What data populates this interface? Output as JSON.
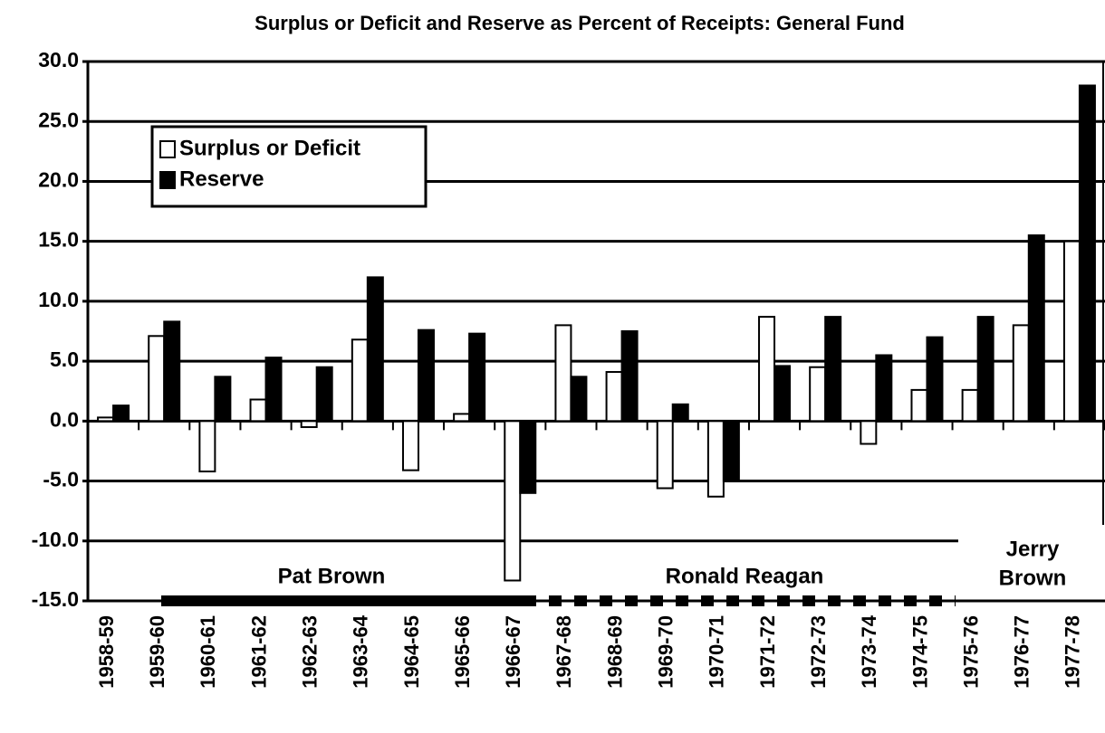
{
  "chart_data": {
    "type": "bar",
    "title": "Surplus or Deficit and Reserve as Percent of Receipts: General Fund",
    "categories": [
      "1958-59",
      "1959-60",
      "1960-61",
      "1961-62",
      "1962-63",
      "1963-64",
      "1964-65",
      "1965-66",
      "1966-67",
      "1967-68",
      "1968-69",
      "1969-70",
      "1970-71",
      "1971-72",
      "1972-73",
      "1973-74",
      "1974-75",
      "1975-76",
      "1976-77",
      "1977-78"
    ],
    "series": [
      {
        "name": "Surplus or Deficit",
        "color": "#ffffff",
        "values": [
          0.3,
          7.1,
          -4.2,
          1.8,
          -0.5,
          6.8,
          -4.1,
          0.6,
          -13.3,
          8.0,
          4.1,
          -5.6,
          -6.3,
          8.7,
          4.5,
          -1.9,
          2.6,
          2.6,
          8.0,
          15.0
        ]
      },
      {
        "name": "Reserve",
        "color": "#000000",
        "values": [
          1.3,
          8.3,
          3.7,
          5.3,
          4.5,
          12.0,
          7.6,
          7.3,
          -6.0,
          3.7,
          7.5,
          1.4,
          -5.0,
          4.6,
          8.7,
          5.5,
          7.0,
          8.7,
          15.5,
          28.0
        ]
      }
    ],
    "ylim": [
      -15,
      30
    ],
    "yticks": [
      {
        "value": 30,
        "label": "30.0"
      },
      {
        "value": 25,
        "label": "25.0"
      },
      {
        "value": 20,
        "label": "20.0"
      },
      {
        "value": 15,
        "label": "15.0"
      },
      {
        "value": 10,
        "label": "10.0"
      },
      {
        "value": 5,
        "label": "5.0"
      },
      {
        "value": 0,
        "label": "0.0"
      },
      {
        "value": -5,
        "label": "-5.0"
      },
      {
        "value": -10,
        "label": "-10.0"
      },
      {
        "value": -15,
        "label": "-15.0"
      }
    ],
    "grid": true,
    "legend": "upper left",
    "annotations": [
      {
        "lines": [
          "Pat Brown"
        ]
      },
      {
        "lines": [
          "Ronald Reagan"
        ]
      },
      {
        "lines": [
          "Jerry",
          "Brown"
        ]
      }
    ]
  }
}
